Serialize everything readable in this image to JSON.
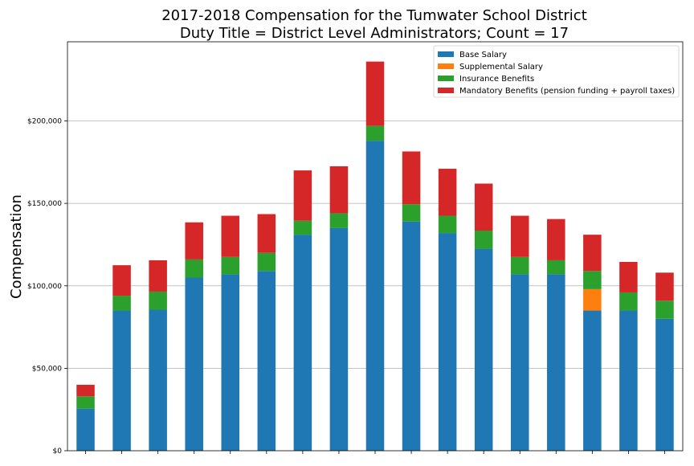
{
  "chart_data": {
    "type": "bar",
    "stacked": true,
    "title_line1": "2017-2018 Compensation for the Tumwater School District",
    "title_line2": "Duty Title = District Level Administrators; Count = 17",
    "ylabel": "Compensation",
    "xlabel": "",
    "ylim": [
      0,
      248000
    ],
    "yticks": [
      0,
      50000,
      100000,
      150000,
      200000
    ],
    "ytick_labels": [
      "$0",
      "$50,000",
      "$100,000",
      "$150,000",
      "$200,000"
    ],
    "grid": "horizontal",
    "legend_position": "top-right",
    "categories_count": 17,
    "series": [
      {
        "name": "Base Salary",
        "color": "#1f77b4",
        "values": [
          25500,
          85000,
          85500,
          105000,
          107000,
          109000,
          131000,
          135000,
          188000,
          139000,
          132000,
          122500,
          107000,
          107000,
          85000,
          85000,
          80000
        ]
      },
      {
        "name": "Supplemental Salary",
        "color": "#ff7f0e",
        "values": [
          0,
          0,
          0,
          0,
          0,
          0,
          0,
          0,
          0,
          0,
          0,
          0,
          0,
          0,
          13000,
          0,
          0
        ]
      },
      {
        "name": "Insurance Benefits",
        "color": "#2ca02c",
        "values": [
          7500,
          9000,
          11000,
          11000,
          10500,
          11000,
          8500,
          9000,
          9000,
          10500,
          10500,
          11000,
          10500,
          8500,
          11000,
          11000,
          11000
        ]
      },
      {
        "name": "Mandatory Benefits (pension funding + payroll taxes)",
        "color": "#d62728",
        "values": [
          7000,
          18500,
          19000,
          22500,
          25000,
          23500,
          30500,
          28500,
          39000,
          32000,
          28500,
          28500,
          25000,
          25000,
          22000,
          18500,
          17000
        ]
      }
    ]
  }
}
